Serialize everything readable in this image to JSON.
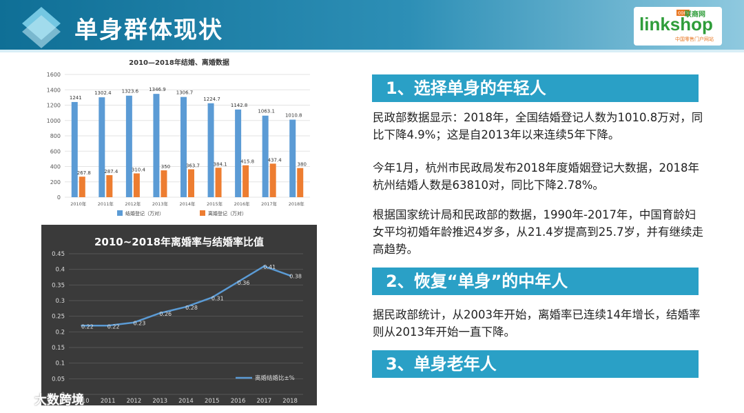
{
  "header": {
    "title": "单身群体现状"
  },
  "brand": {
    "main": "linkshop",
    "sub": "联商网",
    "dot": "com",
    "tagline": "中国零售门户网站"
  },
  "sections": [
    {
      "title": "1、选择单身的年轻人",
      "paragraphs": [
        "民政部数据显示：2018年，全国结婚登记人数为1010.8万对，同比下降4.9%；这是自2013年以来连续5年下降。",
        "今年1月，杭州市民政局发布2018年度婚姻登记大数据，2018年杭州结婚人数是63810对，同比下降2.78%。",
        "根据国家统计局和民政部的数据，1990年-2017年，中国育龄妇女平均初婚年龄推迟4岁多，从21.4岁提高到25.7岁，并有继续走高趋势。"
      ]
    },
    {
      "title": "2、恢复“单身”的中年人",
      "paragraphs": [
        "据民政部统计，从2003年开始，离婚率已连续14年增长，结婚率则从2013年开始一直下降。"
      ]
    },
    {
      "title": "3、单身老年人",
      "paragraphs": []
    }
  ],
  "watermark": "大数跨境",
  "chart_data": [
    {
      "type": "bar",
      "title": "2010—2018年结婚、离婚数据",
      "categories": [
        "2010年",
        "2011年",
        "2012年",
        "2013年",
        "2014年",
        "2015年",
        "2016年",
        "2017年",
        "2018年"
      ],
      "series": [
        {
          "name": "结婚登记（万对）",
          "values": [
            1241,
            1302.4,
            1323.6,
            1346.9,
            1306.7,
            1224.7,
            1142.8,
            1063.1,
            1010.8
          ],
          "color": "#5b9bd5"
        },
        {
          "name": "离婚登记（万对）",
          "values": [
            267.8,
            287.4,
            310.4,
            350,
            363.7,
            384.1,
            415.8,
            437.4,
            380
          ],
          "color": "#ed7d31"
        }
      ],
      "value_labels": [
        "1241",
        "1302.4",
        "1323.6",
        "1346.9",
        "1306.7",
        "1224.7",
        "1142.8",
        "1063.1",
        "1010.8"
      ],
      "value_labels2": [
        "267.8",
        "287.4",
        "310.4",
        "350",
        "363.7",
        "384.1",
        "415.8",
        "437.4",
        "380"
      ],
      "ylim": [
        0,
        1600
      ],
      "yticks": [
        "0",
        "200",
        "400",
        "600",
        "800",
        "1000",
        "1200",
        "1400",
        "1600"
      ],
      "grid": true,
      "legend": "bottom"
    },
    {
      "type": "line",
      "title": "2010~2018年离婚率与结婚率比值",
      "x": [
        "2010",
        "2011",
        "2012",
        "2013",
        "2014",
        "2015",
        "2016",
        "2017",
        "2018"
      ],
      "series": [
        {
          "name": "离婚结婚比±%",
          "values": [
            0.22,
            0.22,
            0.23,
            0.26,
            0.28,
            0.31,
            0.36,
            0.41,
            0.38
          ],
          "color": "#5b9bd5"
        }
      ],
      "value_labels": [
        "0.22",
        "0.22",
        "0.23",
        "0.26",
        "0.28",
        "0.31",
        "0.36",
        "0.41",
        "0.38"
      ],
      "ylim": [
        0,
        0.45
      ],
      "yticks": [
        "0",
        "0.05",
        "0.1",
        "0.15",
        "0.2",
        "0.25",
        "0.3",
        "0.35",
        "0.4",
        "0.45"
      ],
      "grid": true,
      "legend": "bottom-right"
    }
  ]
}
